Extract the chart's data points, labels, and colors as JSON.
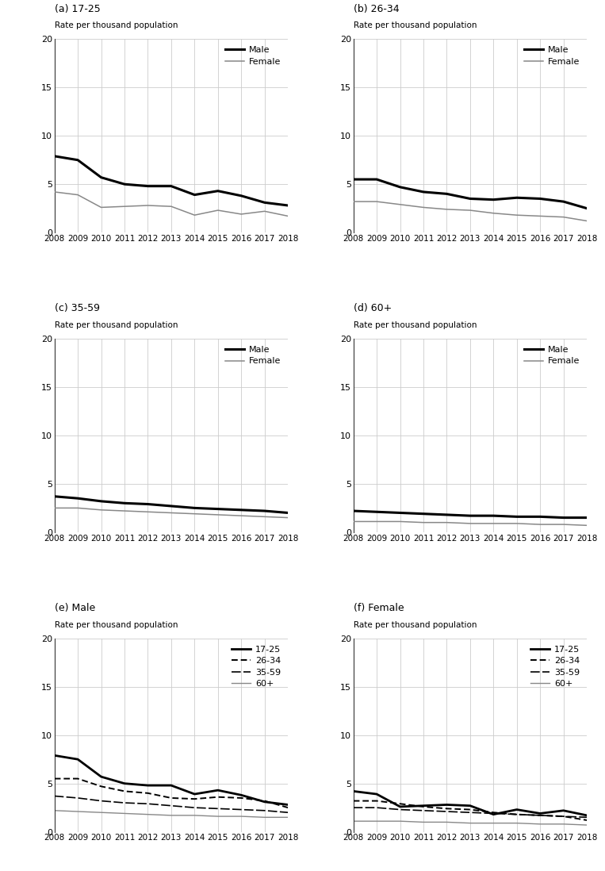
{
  "years": [
    2008,
    2009,
    2010,
    2011,
    2012,
    2013,
    2014,
    2015,
    2016,
    2017,
    2018
  ],
  "a_17_25": {
    "male": [
      7.9,
      7.5,
      5.7,
      5.0,
      4.8,
      4.8,
      3.9,
      4.3,
      3.8,
      3.1,
      2.8
    ],
    "female": [
      4.2,
      3.9,
      2.6,
      2.7,
      2.8,
      2.7,
      1.8,
      2.3,
      1.9,
      2.2,
      1.7
    ]
  },
  "b_26_34": {
    "male": [
      5.5,
      5.5,
      4.7,
      4.2,
      4.0,
      3.5,
      3.4,
      3.6,
      3.5,
      3.2,
      2.5
    ],
    "female": [
      3.2,
      3.2,
      2.9,
      2.6,
      2.4,
      2.3,
      2.0,
      1.8,
      1.7,
      1.6,
      1.2
    ]
  },
  "c_35_59": {
    "male": [
      3.7,
      3.5,
      3.2,
      3.0,
      2.9,
      2.7,
      2.5,
      2.4,
      2.3,
      2.2,
      2.0
    ],
    "female": [
      2.5,
      2.5,
      2.3,
      2.2,
      2.1,
      2.0,
      1.9,
      1.8,
      1.7,
      1.6,
      1.5
    ]
  },
  "d_60plus": {
    "male": [
      2.2,
      2.1,
      2.0,
      1.9,
      1.8,
      1.7,
      1.7,
      1.6,
      1.6,
      1.5,
      1.5
    ],
    "female": [
      1.1,
      1.1,
      1.1,
      1.0,
      1.0,
      0.9,
      0.9,
      0.9,
      0.8,
      0.8,
      0.7
    ]
  },
  "e_male": {
    "17_25": [
      7.9,
      7.5,
      5.7,
      5.0,
      4.8,
      4.8,
      3.9,
      4.3,
      3.8,
      3.1,
      2.8
    ],
    "26_34": [
      5.5,
      5.5,
      4.7,
      4.2,
      4.0,
      3.5,
      3.4,
      3.6,
      3.5,
      3.2,
      2.5
    ],
    "35_59": [
      3.7,
      3.5,
      3.2,
      3.0,
      2.9,
      2.7,
      2.5,
      2.4,
      2.3,
      2.2,
      2.0
    ],
    "60plus": [
      2.2,
      2.1,
      2.0,
      1.9,
      1.8,
      1.7,
      1.7,
      1.6,
      1.6,
      1.5,
      1.5
    ]
  },
  "f_female": {
    "17_25": [
      4.2,
      3.9,
      2.6,
      2.7,
      2.8,
      2.7,
      1.8,
      2.3,
      1.9,
      2.2,
      1.7
    ],
    "26_34": [
      3.2,
      3.2,
      2.9,
      2.6,
      2.4,
      2.3,
      2.0,
      1.8,
      1.7,
      1.6,
      1.2
    ],
    "35_59": [
      2.5,
      2.5,
      2.3,
      2.2,
      2.1,
      2.0,
      1.9,
      1.8,
      1.7,
      1.6,
      1.5
    ],
    "60plus": [
      1.1,
      1.1,
      1.1,
      1.0,
      1.0,
      0.9,
      0.9,
      0.9,
      0.8,
      0.8,
      0.7
    ]
  },
  "ylim": [
    0,
    20
  ],
  "yticks": [
    0,
    5,
    10,
    15,
    20
  ],
  "ylabel": "Rate per thousand population",
  "grid_color": "#cccccc",
  "subplot_titles": [
    "(a) 17-25",
    "(b) 26-34",
    "(c) 35-59",
    "(d) 60+",
    "(e) Male",
    "(f) Female"
  ]
}
